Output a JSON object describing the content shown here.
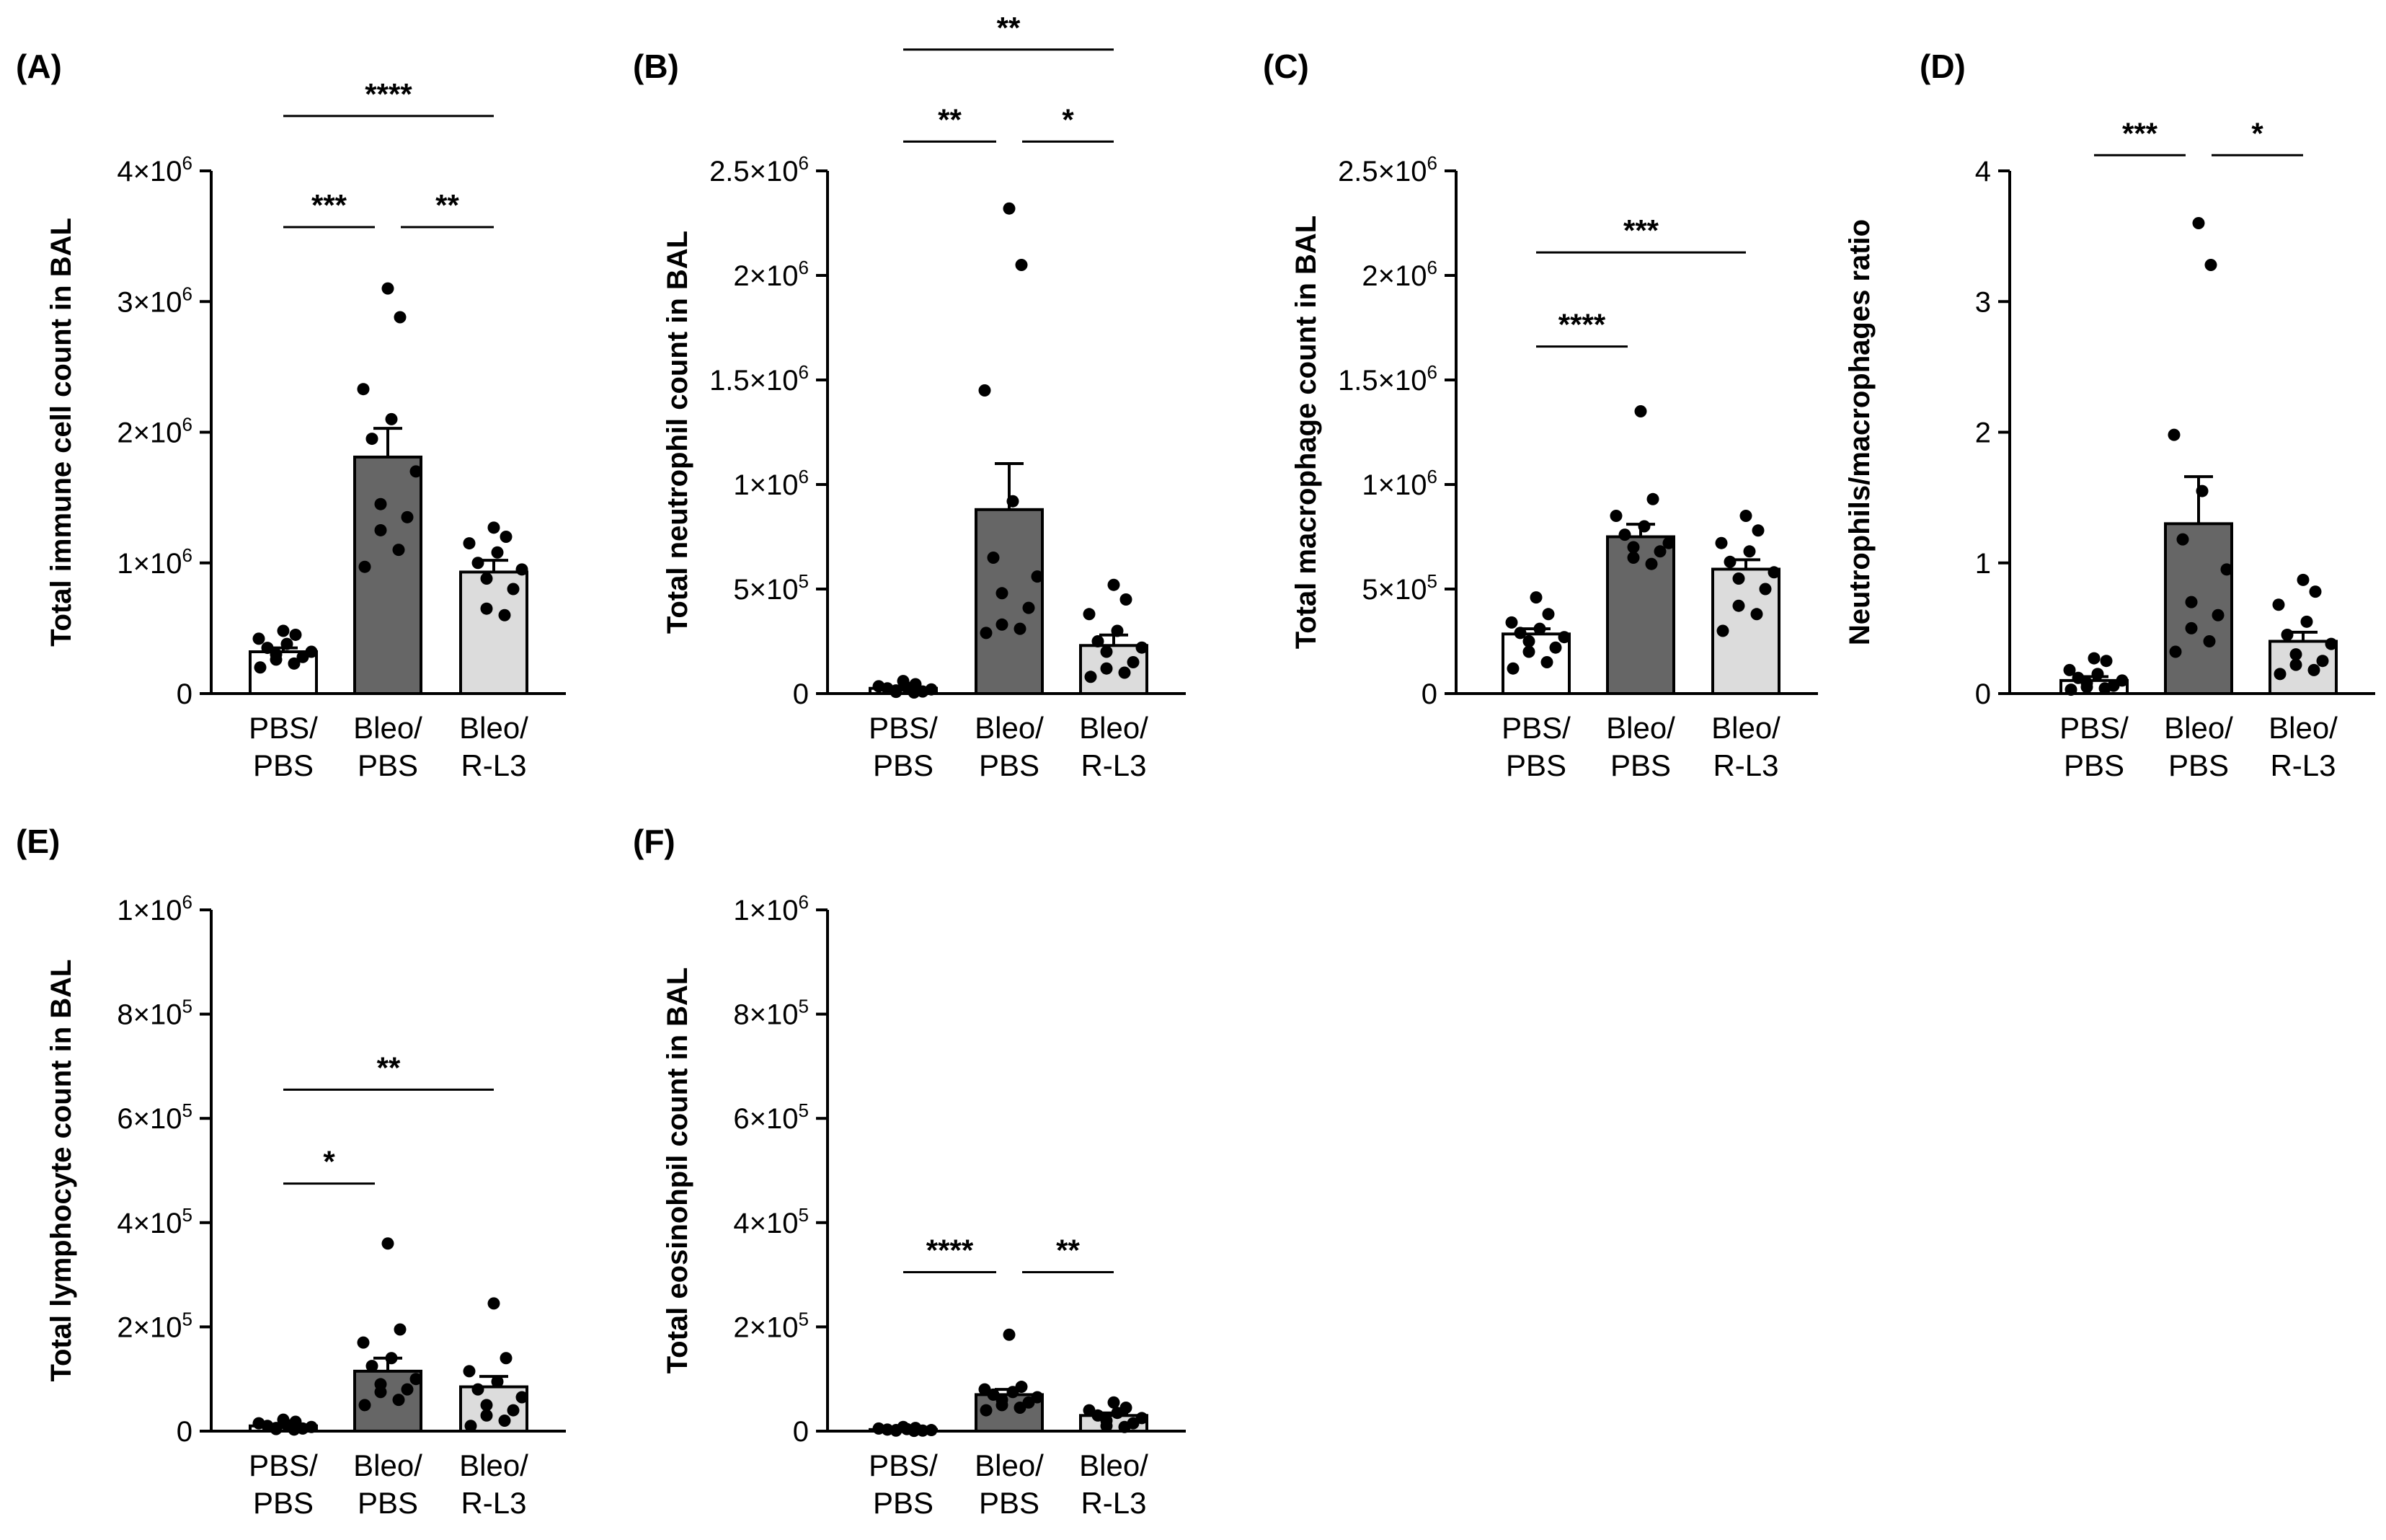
{
  "figure": {
    "description_free": true
  },
  "colors": {
    "pbs": "#ffffff",
    "bleo_pbs": "#666666",
    "bleo_rl3": "#dcdcdc",
    "ink": "#000000"
  },
  "chart_data": [
    {
      "panel": "(A)",
      "type": "bar",
      "ylabel": "Total immune cell count in BAL",
      "ylim": [
        0,
        4000000
      ],
      "ticks": [
        {
          "v": 0,
          "label": "0"
        },
        {
          "v": 1000000,
          "label": "1×10",
          "exp": "6"
        },
        {
          "v": 2000000,
          "label": "2×10",
          "exp": "6"
        },
        {
          "v": 3000000,
          "label": "3×10",
          "exp": "6"
        },
        {
          "v": 4000000,
          "label": "4×10",
          "exp": "6"
        }
      ],
      "categories": [
        [
          "PBS/",
          "PBS"
        ],
        [
          "Bleo/",
          "PBS"
        ],
        [
          "Bleo/",
          "R-L3"
        ]
      ],
      "means": [
        320000,
        1810000,
        930000
      ],
      "sem": [
        30000,
        220000,
        90000
      ],
      "points": [
        [
          480000,
          450000,
          420000,
          380000,
          350000,
          320000,
          300000,
          280000,
          260000,
          230000,
          200000
        ],
        [
          3100000,
          2880000,
          2330000,
          2100000,
          1950000,
          1700000,
          1450000,
          1350000,
          1250000,
          1100000,
          970000
        ],
        [
          1270000,
          1200000,
          1150000,
          1080000,
          1000000,
          950000,
          880000,
          800000,
          650000,
          600000
        ]
      ],
      "significance": [
        {
          "from": 0,
          "to": 2,
          "label": "****",
          "y": 4420000
        },
        {
          "from": 0,
          "to": 1,
          "label": "***",
          "y": 3570000
        },
        {
          "from": 1,
          "to": 2,
          "label": "**",
          "y": 3570000
        }
      ]
    },
    {
      "panel": "(B)",
      "type": "bar",
      "ylabel": "Total neutrophil count in BAL",
      "ylim": [
        0,
        2500000
      ],
      "ticks": [
        {
          "v": 0,
          "label": "0"
        },
        {
          "v": 500000,
          "label": "5×10",
          "exp": "5"
        },
        {
          "v": 1000000,
          "label": "1×10",
          "exp": "6"
        },
        {
          "v": 1500000,
          "label": "1.5×10",
          "exp": "6"
        },
        {
          "v": 2000000,
          "label": "2×10",
          "exp": "6"
        },
        {
          "v": 2500000,
          "label": "2.5×10",
          "exp": "6"
        }
      ],
      "categories": [
        [
          "PBS/",
          "PBS"
        ],
        [
          "Bleo/",
          "PBS"
        ],
        [
          "Bleo/",
          "R-L3"
        ]
      ],
      "means": [
        25000,
        880000,
        230000
      ],
      "sem": [
        5000,
        220000,
        50000
      ],
      "points": [
        [
          60000,
          45000,
          35000,
          30000,
          25000,
          20000,
          15000,
          10000,
          8000,
          5000
        ],
        [
          2320000,
          2050000,
          1450000,
          920000,
          650000,
          560000,
          480000,
          410000,
          330000,
          310000,
          290000
        ],
        [
          520000,
          450000,
          380000,
          300000,
          250000,
          220000,
          200000,
          150000,
          120000,
          100000,
          80000
        ]
      ],
      "significance": [
        {
          "from": 0,
          "to": 2,
          "label": "**",
          "y": 3080000
        },
        {
          "from": 0,
          "to": 1,
          "label": "**",
          "y": 2640000
        },
        {
          "from": 1,
          "to": 2,
          "label": "*",
          "y": 2640000
        }
      ]
    },
    {
      "panel": "(C)",
      "type": "bar",
      "ylabel": "Total macrophage count in BAL",
      "ylim": [
        0,
        2500000
      ],
      "ticks": [
        {
          "v": 0,
          "label": "0"
        },
        {
          "v": 500000,
          "label": "5×10",
          "exp": "5"
        },
        {
          "v": 1000000,
          "label": "1×10",
          "exp": "6"
        },
        {
          "v": 1500000,
          "label": "1.5×10",
          "exp": "6"
        },
        {
          "v": 2000000,
          "label": "2×10",
          "exp": "6"
        },
        {
          "v": 2500000,
          "label": "2.5×10",
          "exp": "6"
        }
      ],
      "categories": [
        [
          "PBS/",
          "PBS"
        ],
        [
          "Bleo/",
          "PBS"
        ],
        [
          "Bleo/",
          "R-L3"
        ]
      ],
      "means": [
        285000,
        750000,
        595000
      ],
      "sem": [
        25000,
        60000,
        45000
      ],
      "points": [
        [
          460000,
          380000,
          340000,
          310000,
          290000,
          270000,
          250000,
          220000,
          200000,
          150000,
          120000
        ],
        [
          1350000,
          930000,
          850000,
          800000,
          760000,
          720000,
          700000,
          680000,
          650000,
          620000
        ],
        [
          850000,
          780000,
          720000,
          680000,
          630000,
          580000,
          550000,
          500000,
          420000,
          380000,
          300000
        ]
      ],
      "significance": [
        {
          "from": 0,
          "to": 2,
          "label": "***",
          "y": 2110000
        },
        {
          "from": 0,
          "to": 1,
          "label": "****",
          "y": 1660000
        }
      ]
    },
    {
      "panel": "(D)",
      "type": "bar",
      "ylabel": "Neutrophils/macrophages ratio",
      "ylim": [
        0,
        4
      ],
      "ticks": [
        {
          "v": 0,
          "label": "0"
        },
        {
          "v": 1,
          "label": "1"
        },
        {
          "v": 2,
          "label": "2"
        },
        {
          "v": 3,
          "label": "3"
        },
        {
          "v": 4,
          "label": "4"
        }
      ],
      "categories": [
        [
          "PBS/",
          "PBS"
        ],
        [
          "Bleo/",
          "PBS"
        ],
        [
          "Bleo/",
          "R-L3"
        ]
      ],
      "means": [
        0.1,
        1.3,
        0.4
      ],
      "sem": [
        0.03,
        0.36,
        0.07
      ],
      "points": [
        [
          0.27,
          0.25,
          0.18,
          0.15,
          0.12,
          0.1,
          0.08,
          0.06,
          0.05,
          0.04,
          0.03
        ],
        [
          3.6,
          3.28,
          1.98,
          1.55,
          1.18,
          0.95,
          0.7,
          0.6,
          0.5,
          0.4,
          0.32
        ],
        [
          0.87,
          0.78,
          0.68,
          0.55,
          0.45,
          0.38,
          0.3,
          0.25,
          0.22,
          0.18,
          0.15
        ]
      ],
      "significance": [
        {
          "from": 0,
          "to": 1,
          "label": "***",
          "y": 4.12
        },
        {
          "from": 1,
          "to": 2,
          "label": "*",
          "y": 4.12
        }
      ]
    },
    {
      "panel": "(E)",
      "type": "bar",
      "ylabel": "Total lymphocyte count in BAL",
      "ylim": [
        0,
        1000000
      ],
      "ticks": [
        {
          "v": 0,
          "label": "0"
        },
        {
          "v": 200000,
          "label": "2×10",
          "exp": "5"
        },
        {
          "v": 400000,
          "label": "4×10",
          "exp": "5"
        },
        {
          "v": 600000,
          "label": "6×10",
          "exp": "5"
        },
        {
          "v": 800000,
          "label": "8×10",
          "exp": "5"
        },
        {
          "v": 1000000,
          "label": "1×10",
          "exp": "6"
        }
      ],
      "categories": [
        [
          "PBS/",
          "PBS"
        ],
        [
          "Bleo/",
          "PBS"
        ],
        [
          "Bleo/",
          "R-L3"
        ]
      ],
      "means": [
        10000,
        115000,
        85000
      ],
      "sem": [
        2000,
        25000,
        20000
      ],
      "points": [
        [
          22000,
          18000,
          15000,
          12000,
          10000,
          8000,
          6000,
          5000,
          4000,
          3000
        ],
        [
          360000,
          195000,
          170000,
          140000,
          125000,
          100000,
          90000,
          80000,
          75000,
          60000,
          50000
        ],
        [
          245000,
          140000,
          115000,
          95000,
          80000,
          65000,
          50000,
          40000,
          30000,
          20000,
          10000
        ]
      ],
      "significance": [
        {
          "from": 0,
          "to": 2,
          "label": "**",
          "y": 655000
        },
        {
          "from": 0,
          "to": 1,
          "label": "*",
          "y": 475000
        }
      ]
    },
    {
      "panel": "(F)",
      "type": "bar",
      "ylabel": "Total eosinohpil count in BAL",
      "ylim": [
        0,
        1000000
      ],
      "ticks": [
        {
          "v": 0,
          "label": "0"
        },
        {
          "v": 200000,
          "label": "2×10",
          "exp": "5"
        },
        {
          "v": 400000,
          "label": "4×10",
          "exp": "5"
        },
        {
          "v": 600000,
          "label": "6×10",
          "exp": "5"
        },
        {
          "v": 800000,
          "label": "8×10",
          "exp": "5"
        },
        {
          "v": 1000000,
          "label": "1×10",
          "exp": "6"
        }
      ],
      "categories": [
        [
          "PBS/",
          "PBS"
        ],
        [
          "Bleo/",
          "PBS"
        ],
        [
          "Bleo/",
          "R-L3"
        ]
      ],
      "means": [
        3000,
        70000,
        30000
      ],
      "sem": [
        1000,
        10000,
        5000
      ],
      "points": [
        [
          8000,
          6000,
          5000,
          4000,
          3000,
          2000,
          2000,
          1000,
          1000,
          500
        ],
        [
          185000,
          85000,
          80000,
          75000,
          70000,
          65000,
          60000,
          55000,
          50000,
          45000,
          40000
        ],
        [
          55000,
          45000,
          40000,
          35000,
          30000,
          25000,
          20000,
          15000,
          10000,
          8000
        ]
      ],
      "significance": [
        {
          "from": 0,
          "to": 1,
          "label": "****",
          "y": 305000
        },
        {
          "from": 1,
          "to": 2,
          "label": "**",
          "y": 305000
        }
      ]
    }
  ]
}
